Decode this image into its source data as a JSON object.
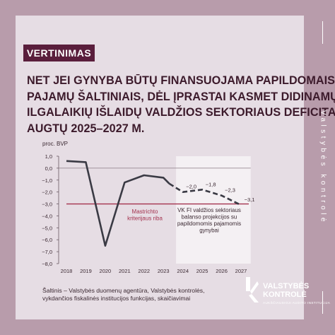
{
  "tag": "VERTINIMAS",
  "headline": [
    "NET JEI GYNYBA BŪTŲ FINANSUOJAMA PAPILDOMAIS",
    "PAJAMŲ ŠALTINIAIS, DĖL ĮPRASTAI KASMET DIDINAMŲ",
    "ILGALAIKIŲ IŠLAIDŲ VALDŽIOS SEKTORIAUS DEFICITAS",
    "AUGTŲ 2025–2027 M."
  ],
  "side_text": "Valstybės kontrolė",
  "source": "Šaltinis – Valstybės duomenų agentūra, Valstybės kontrolės, vykdančios fiskalinės institucijos funkcijas, skaičiavimai",
  "logo": {
    "line1": "VALSTYBĖS",
    "line2": "KONTROLĖ",
    "sub": "AUKŠČIAUSIOJI AUDITO INSTITUCIJA"
  },
  "colors": {
    "background": "#b89cab",
    "panel": "#e6dde4",
    "accent": "#5a1e3c",
    "series": "#3a3a44",
    "threshold": "#a3324e",
    "projection_band": "#f4f0f3"
  },
  "chart_data": {
    "type": "line",
    "ylabel": "proc. BVP",
    "ylim": [
      -8,
      1
    ],
    "yticks": [
      1.0,
      0.0,
      -1.0,
      -2.0,
      -3.0,
      -4.0,
      -5.0,
      -6.0,
      -7.0,
      -8.0
    ],
    "ytick_labels": [
      "1,0",
      "0,0",
      "−1,0",
      "−2,0",
      "−3,0",
      "−4,0",
      "−5,0",
      "−6,0",
      "−7,0",
      "−8,0"
    ],
    "x_labels": [
      "2018",
      "2019",
      "2020",
      "2021",
      "2022",
      "2023",
      "2024",
      "2025",
      "2026",
      "2027"
    ],
    "series": [
      {
        "style": "solid",
        "points": [
          [
            2018,
            0.6
          ],
          [
            2019,
            0.5
          ],
          [
            2020,
            -6.5
          ],
          [
            2021,
            -1.2
          ],
          [
            2022,
            -0.6
          ],
          [
            2023,
            -0.8
          ],
          [
            2023.3,
            -1.3
          ]
        ]
      },
      {
        "style": "dashed",
        "points": [
          [
            2023.3,
            -1.3
          ],
          [
            2024,
            -2.0
          ],
          [
            2025,
            -1.8
          ],
          [
            2026,
            -2.3
          ],
          [
            2027,
            -3.1
          ]
        ]
      }
    ],
    "data_labels": [
      {
        "x": 2024,
        "y": -2.0,
        "text": "−2,0"
      },
      {
        "x": 2025,
        "y": -1.8,
        "text": "−1,8"
      },
      {
        "x": 2026,
        "y": -2.3,
        "text": "−2,3"
      },
      {
        "x": 2027,
        "y": -3.1,
        "text": "−3,1"
      }
    ],
    "threshold": {
      "y": -3.0,
      "label": [
        "Mastrichto",
        "kriterijaus riba"
      ]
    },
    "projection": {
      "x_start": 2023.65,
      "x_end": 2027.5,
      "label": [
        "VK FI valdžios sektoriaus",
        "balanso projekcijos su",
        "papildomomis pajamomis",
        "gynybai"
      ]
    }
  }
}
